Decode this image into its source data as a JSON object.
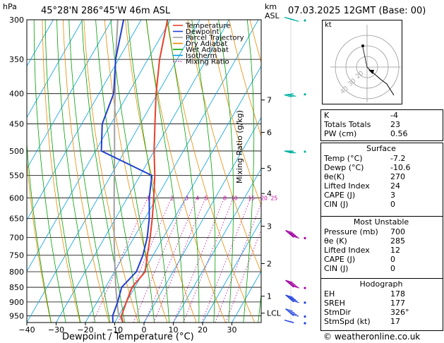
{
  "header": {
    "hpa_label": "hPa",
    "location": "45°28'N  286°45'W  46m  ASL",
    "km_label": "km",
    "asl_label": "ASL",
    "datetime": "07.03.2025  12GMT  (Base: 00)"
  },
  "colors": {
    "temperature": "#e8402a",
    "dewpoint": "#1f3fd0",
    "parcel": "#a0a0a0",
    "dry_adiabat": "#e88a00",
    "wet_adiabat": "#00a000",
    "isotherm": "#00a0e0",
    "mixing_ratio": "#c000a0"
  },
  "legend": [
    {
      "label": "Temperature",
      "color": "#e8402a",
      "style": "solid"
    },
    {
      "label": "Dewpoint",
      "color": "#1f3fd0",
      "style": "solid"
    },
    {
      "label": "Parcel Trajectory",
      "color": "#a0a0a0",
      "style": "solid"
    },
    {
      "label": "Dry Adiabat",
      "color": "#e88a00",
      "style": "solid"
    },
    {
      "label": "Wet Adiabat",
      "color": "#00a000",
      "style": "solid"
    },
    {
      "label": "Isotherm",
      "color": "#00a0e0",
      "style": "solid"
    },
    {
      "label": "Mixing Ratio",
      "color": "#c000a0",
      "style": "dotted"
    }
  ],
  "chart_data": {
    "type": "skew-t",
    "xlabel": "Dewpoint / Temperature (°C)",
    "ylabel_left": "hPa",
    "ylabel_right": "Mixing Ratio (g/kg)",
    "xlim": [
      -40,
      40
    ],
    "pressure_levels": [
      300,
      350,
      400,
      450,
      500,
      550,
      600,
      650,
      700,
      750,
      800,
      850,
      900,
      950
    ],
    "x_ticks": [
      -40,
      -30,
      -20,
      -10,
      0,
      10,
      20,
      30
    ],
    "x_tick_labels": [
      "−40",
      "−30",
      "−20",
      "−10",
      "0",
      "10",
      "20",
      "30"
    ],
    "km_levels": [
      {
        "km": "7",
        "p": 410
      },
      {
        "km": "6",
        "p": 465
      },
      {
        "km": "5",
        "p": 535
      },
      {
        "km": "4",
        "p": 590
      },
      {
        "km": "3",
        "p": 670
      },
      {
        "km": "2",
        "p": 775
      },
      {
        "km": "1",
        "p": 880
      },
      {
        "km": "LCL",
        "p": 940
      }
    ],
    "mixing_ratio_labels": [
      "1",
      "2",
      "3",
      "4",
      "5",
      "8",
      "10",
      "15",
      "20",
      "25"
    ],
    "temperature": [
      {
        "p": 975,
        "t": -7.2
      },
      {
        "p": 950,
        "t": -9
      },
      {
        "p": 900,
        "t": -10
      },
      {
        "p": 850,
        "t": -11
      },
      {
        "p": 800,
        "t": -9.5
      },
      {
        "p": 750,
        "t": -12
      },
      {
        "p": 700,
        "t": -14.5
      },
      {
        "p": 650,
        "t": -17.5
      },
      {
        "p": 600,
        "t": -21
      },
      {
        "p": 550,
        "t": -25
      },
      {
        "p": 500,
        "t": -30
      },
      {
        "p": 450,
        "t": -35
      },
      {
        "p": 400,
        "t": -40.5
      },
      {
        "p": 350,
        "t": -46
      },
      {
        "p": 300,
        "t": -51
      }
    ],
    "dewpoint": [
      {
        "p": 975,
        "t": -10.6
      },
      {
        "p": 950,
        "t": -12
      },
      {
        "p": 900,
        "t": -13
      },
      {
        "p": 850,
        "t": -14.5
      },
      {
        "p": 800,
        "t": -12.5
      },
      {
        "p": 750,
        "t": -13.5
      },
      {
        "p": 700,
        "t": -15.5
      },
      {
        "p": 650,
        "t": -18.5
      },
      {
        "p": 600,
        "t": -22.5
      },
      {
        "p": 550,
        "t": -26
      },
      {
        "p": 500,
        "t": -48
      },
      {
        "p": 450,
        "t": -53
      },
      {
        "p": 400,
        "t": -55
      },
      {
        "p": 350,
        "t": -61
      },
      {
        "p": 300,
        "t": -66
      }
    ],
    "parcel": [
      {
        "p": 975,
        "t": -7.2
      },
      {
        "p": 940,
        "t": -10.6
      },
      {
        "p": 900,
        "t": -13.2
      },
      {
        "p": 850,
        "t": -16.5
      },
      {
        "p": 800,
        "t": -19.8
      },
      {
        "p": 750,
        "t": -23.2
      },
      {
        "p": 700,
        "t": -26.8
      },
      {
        "p": 650,
        "t": -30.5
      },
      {
        "p": 600,
        "t": -34.5
      },
      {
        "p": 550,
        "t": -38.8
      },
      {
        "p": 500,
        "t": -43.5
      },
      {
        "p": 450,
        "t": -48.8
      },
      {
        "p": 400,
        "t": -54.5
      },
      {
        "p": 350,
        "t": -61
      },
      {
        "p": 300,
        "t": -68
      }
    ],
    "wind_barbs": [
      {
        "p": 300,
        "dir": 280,
        "kt": 45
      },
      {
        "p": 400,
        "dir": 265,
        "kt": 30
      },
      {
        "p": 500,
        "dir": 270,
        "kt": 25
      },
      {
        "p": 700,
        "dir": 300,
        "kt": 50
      },
      {
        "p": 850,
        "dir": 300,
        "kt": 50
      },
      {
        "p": 900,
        "dir": 300,
        "kt": 50
      },
      {
        "p": 950,
        "dir": 300,
        "kt": 40
      },
      {
        "p": 975,
        "dir": 280,
        "kt": 20
      }
    ]
  },
  "hodograph": {
    "unit_label": "kt",
    "ring_labels": [
      "40",
      "30",
      "20"
    ]
  },
  "indices": {
    "top": [
      {
        "label": "K",
        "value": "-4"
      },
      {
        "label": "Totals Totals",
        "value": "23"
      },
      {
        "label": "PW (cm)",
        "value": "0.56"
      }
    ],
    "surface_title": "Surface",
    "surface": [
      {
        "label": "Temp (°C)",
        "value": "-7.2"
      },
      {
        "label": "Dewp (°C)",
        "value": "-10.6"
      },
      {
        "label": "θe(K)",
        "value": "270"
      },
      {
        "label": "Lifted Index",
        "value": "24"
      },
      {
        "label": "CAPE (J)",
        "value": "3"
      },
      {
        "label": "CIN (J)",
        "value": "0"
      }
    ],
    "unstable_title": "Most Unstable",
    "unstable": [
      {
        "label": "Pressure (mb)",
        "value": "700"
      },
      {
        "label": "θe (K)",
        "value": "285"
      },
      {
        "label": "Lifted Index",
        "value": "12"
      },
      {
        "label": "CAPE (J)",
        "value": "0"
      },
      {
        "label": "CIN (J)",
        "value": "0"
      }
    ],
    "hodo_title": "Hodograph",
    "hodo": [
      {
        "label": "EH",
        "value": "178"
      },
      {
        "label": "SREH",
        "value": "177"
      },
      {
        "label": "StmDir",
        "value": "326°"
      },
      {
        "label": "StmSpd (kt)",
        "value": "17"
      }
    ]
  },
  "footer": {
    "copyright": "© weatheronline.co.uk"
  }
}
